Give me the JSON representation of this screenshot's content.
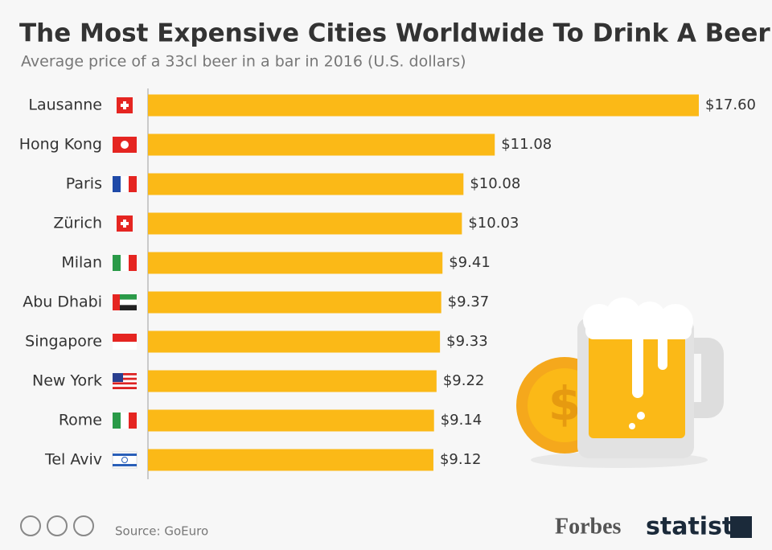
{
  "chart_data": {
    "type": "bar",
    "orientation": "horizontal",
    "title": "The Most Expensive Cities Worldwide To Drink A Beer",
    "subtitle": "Average price of a 33cl beer in a bar in 2016 (U.S. dollars)",
    "categories": [
      "Lausanne",
      "Hong Kong",
      "Paris",
      "Zürich",
      "Milan",
      "Abu Dhabi",
      "Singapore",
      "New York",
      "Rome",
      "Tel Aviv"
    ],
    "values": [
      17.6,
      11.08,
      10.08,
      10.03,
      9.41,
      9.37,
      9.33,
      9.22,
      9.14,
      9.12
    ],
    "value_labels": [
      "$17.60",
      "$11.08",
      "$10.08",
      "$10.03",
      "$9.41",
      "$9.37",
      "$9.33",
      "$9.22",
      "$9.14",
      "$9.12"
    ],
    "color": "#fbb917",
    "source": "Source: GoEuro",
    "logos": [
      "Forbes",
      "statista"
    ]
  }
}
